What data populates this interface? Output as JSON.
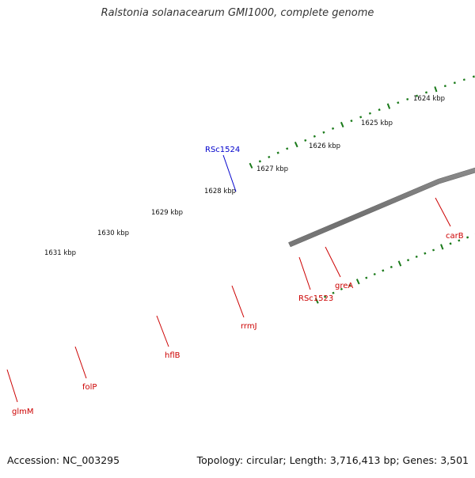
{
  "title": "Ralstonia solanacearum GMI1000, complete genome",
  "footer": {
    "accession": "Accession: NC_003295",
    "summary": "Topology: circular; Length: 3,716,413 bp; Genes: 3,501"
  },
  "colors": {
    "backbone": "#808080",
    "ticks": "#1a7a1a",
    "gene_label": "#cc0000",
    "highlight_label": "#0000cc"
  },
  "ticks": [
    "1624 kbp",
    "1625 kbp",
    "1626 kbp",
    "1627 kbp",
    "1628 kbp",
    "1629 kbp",
    "1630 kbp",
    "1631 kbp"
  ],
  "genes": [
    {
      "label": "glmM",
      "color": "#e8141a"
    },
    {
      "label": "folP",
      "color": "#1010dd"
    },
    {
      "label": "hflB",
      "color": "#b0aa66"
    },
    {
      "label": "rrmJ",
      "color": "#e8787a"
    },
    {
      "label": "RSc1523",
      "color": "#ff8c00"
    },
    {
      "label": "greA",
      "color": "#ff8c00"
    },
    {
      "label": "carB",
      "color": "#e8141a"
    },
    {
      "label": "RSc1524",
      "color": "#1010dd"
    }
  ]
}
